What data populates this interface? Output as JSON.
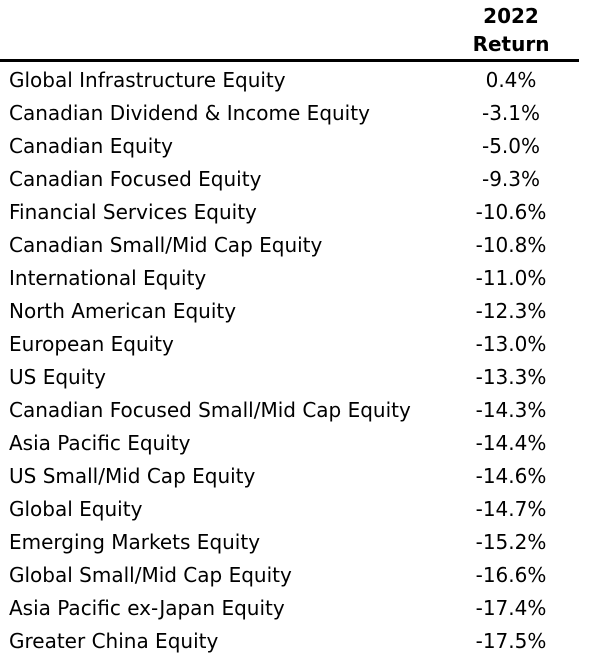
{
  "header": {
    "year": "2022",
    "metric": "Return"
  },
  "rows": [
    {
      "label": "Global Infrastructure Equity",
      "value": "0.4%"
    },
    {
      "label": "Canadian Dividend & Income Equity",
      "value": "-3.1%"
    },
    {
      "label": "Canadian Equity",
      "value": "-5.0%"
    },
    {
      "label": "Canadian Focused Equity",
      "value": "-9.3%"
    },
    {
      "label": "Financial Services Equity",
      "value": "-10.6%"
    },
    {
      "label": "Canadian Small/Mid Cap Equity",
      "value": "-10.8%"
    },
    {
      "label": "International Equity",
      "value": "-11.0%"
    },
    {
      "label": "North American Equity",
      "value": "-12.3%"
    },
    {
      "label": "European Equity",
      "value": "-13.0%"
    },
    {
      "label": "US Equity",
      "value": "-13.3%"
    },
    {
      "label": "Canadian Focused Small/Mid Cap Equity",
      "value": "-14.3%"
    },
    {
      "label": "Asia Pacific Equity",
      "value": "-14.4%"
    },
    {
      "label": "US Small/Mid Cap Equity",
      "value": "-14.6%"
    },
    {
      "label": "Global Equity",
      "value": "-14.7%"
    },
    {
      "label": "Emerging Markets Equity",
      "value": "-15.2%"
    },
    {
      "label": "Global Small/Mid Cap Equity",
      "value": "-16.6%"
    },
    {
      "label": "Asia Pacific ex-Japan Equity",
      "value": "-17.4%"
    },
    {
      "label": "Greater China Equity",
      "value": "-17.5%"
    }
  ]
}
